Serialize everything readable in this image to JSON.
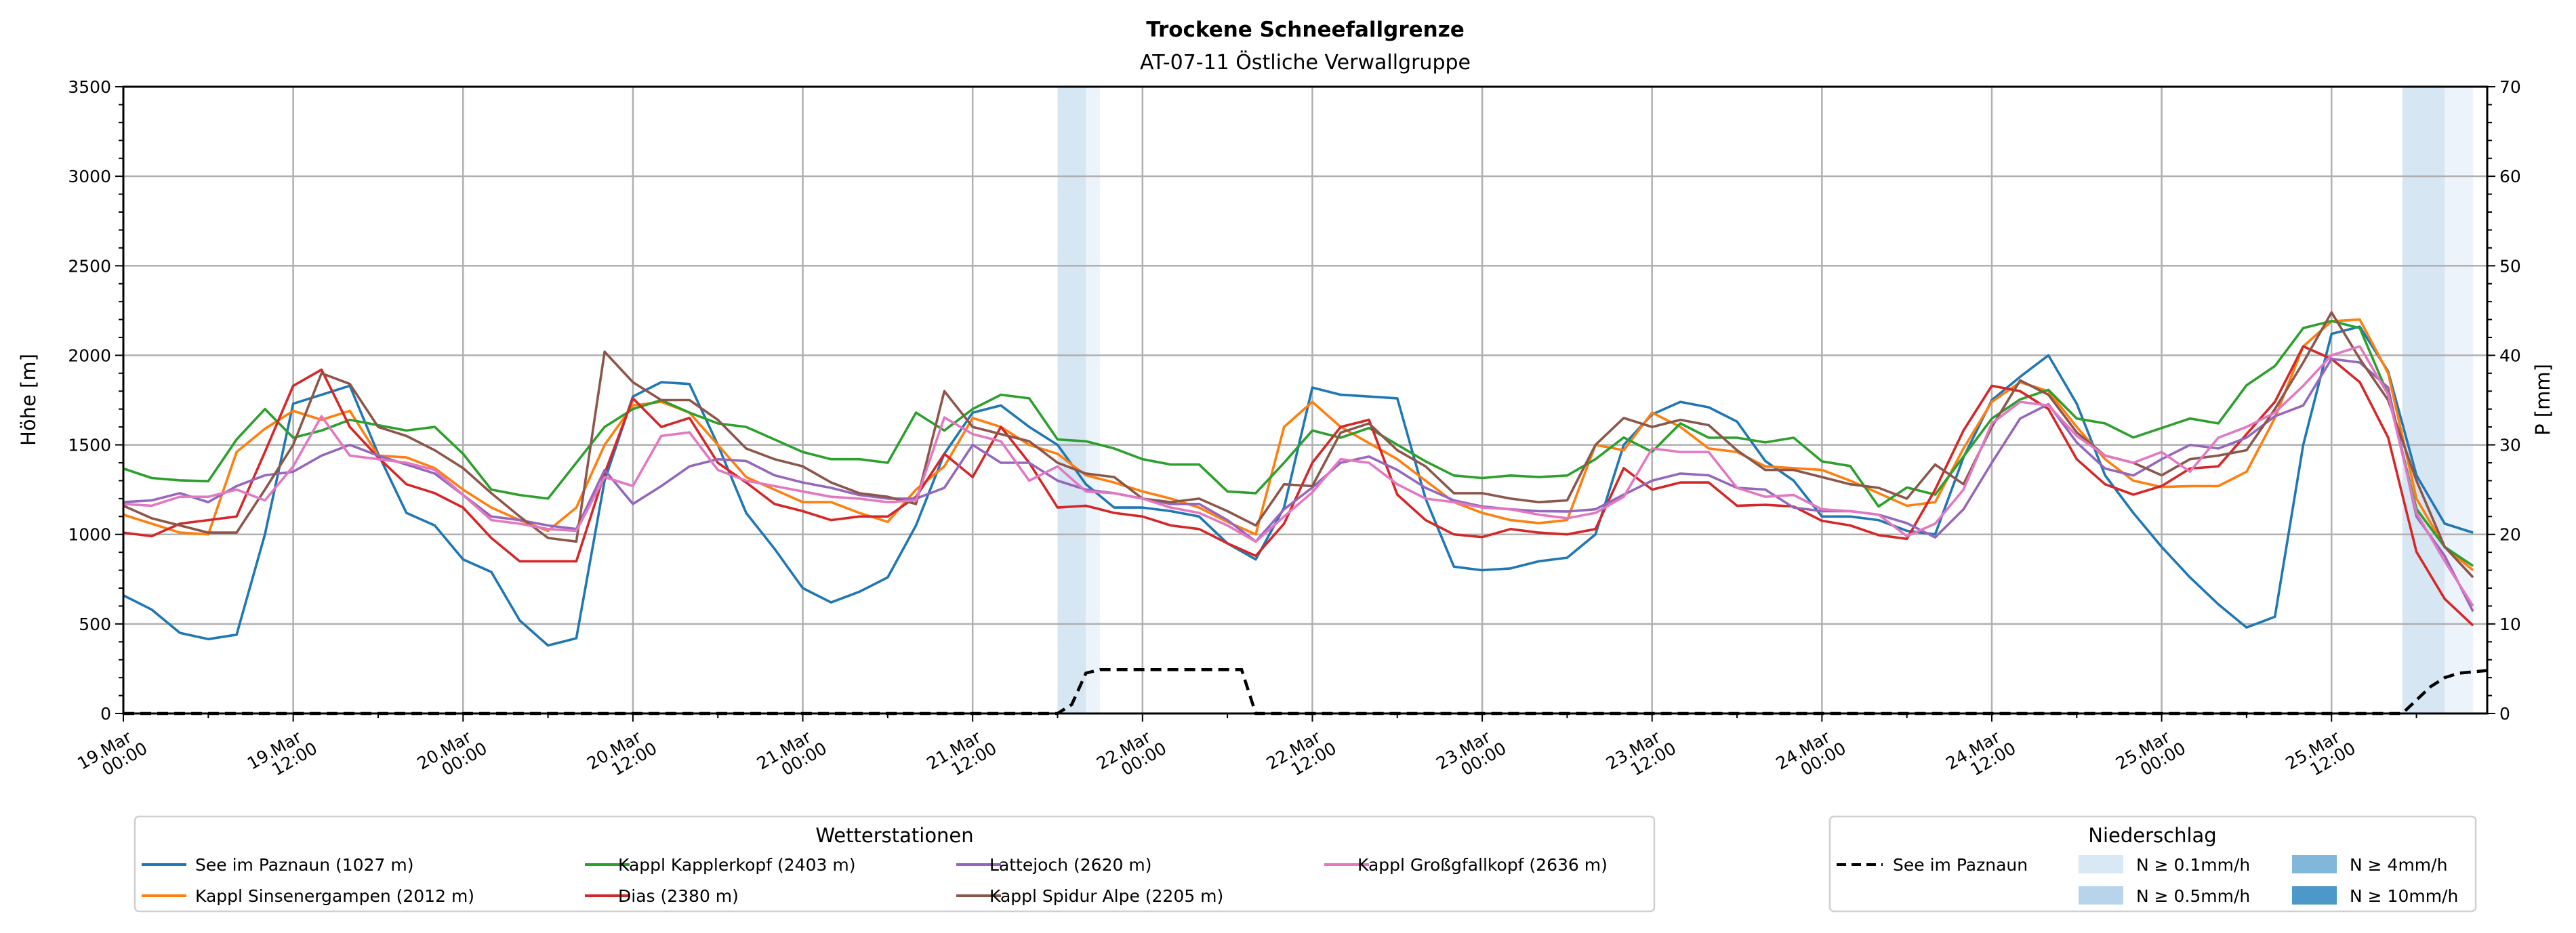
{
  "chart_data": {
    "type": "line",
    "title": "Trockene Schneefallgrenze",
    "subtitle": "AT-07-11 Östliche Verwallgruppe",
    "ylabel": "Höhe [m]",
    "ylabel_right": "P [mm]",
    "ylim": [
      0,
      3500
    ],
    "ylim_right": [
      0,
      70
    ],
    "xlim_hours": [
      0,
      167
    ],
    "grid": true,
    "y_ticks": [
      "0",
      "500",
      "1000",
      "1500",
      "2000",
      "2500",
      "3000",
      "3500"
    ],
    "y_ticks_right": [
      "0",
      "10",
      "20",
      "30",
      "40",
      "50",
      "60",
      "70"
    ],
    "x_ticks": [
      {
        "hour": 0,
        "date": "19.Mar",
        "time": "00:00"
      },
      {
        "hour": 12,
        "date": "19.Mar",
        "time": "12:00"
      },
      {
        "hour": 24,
        "date": "20.Mar",
        "time": "00:00"
      },
      {
        "hour": 36,
        "date": "20.Mar",
        "time": "12:00"
      },
      {
        "hour": 48,
        "date": "21.Mar",
        "time": "00:00"
      },
      {
        "hour": 60,
        "date": "21.Mar",
        "time": "12:00"
      },
      {
        "hour": 72,
        "date": "22.Mar",
        "time": "00:00"
      },
      {
        "hour": 84,
        "date": "22.Mar",
        "time": "12:00"
      },
      {
        "hour": 96,
        "date": "23.Mar",
        "time": "00:00"
      },
      {
        "hour": 108,
        "date": "23.Mar",
        "time": "12:00"
      },
      {
        "hour": 120,
        "date": "24.Mar",
        "time": "00:00"
      },
      {
        "hour": 132,
        "date": "24.Mar",
        "time": "12:00"
      },
      {
        "hour": 144,
        "date": "25.Mar",
        "time": "00:00"
      },
      {
        "hour": 156,
        "date": "25.Mar",
        "time": "12:00"
      }
    ],
    "x": [
      0,
      2,
      4,
      6,
      8,
      10,
      12,
      14,
      16,
      18,
      20,
      22,
      24,
      26,
      28,
      30,
      32,
      34,
      36,
      38,
      40,
      42,
      44,
      46,
      48,
      50,
      52,
      54,
      56,
      58,
      60,
      62,
      64,
      66,
      68,
      70,
      72,
      74,
      76,
      78,
      80,
      82,
      84,
      86,
      88,
      90,
      92,
      94,
      96,
      98,
      100,
      102,
      104,
      106,
      108,
      110,
      112,
      114,
      116,
      118,
      120,
      122,
      124,
      126,
      128,
      130,
      132,
      134,
      136,
      138,
      140,
      142,
      144,
      146,
      148,
      150,
      152,
      154,
      156,
      158,
      160,
      162,
      164,
      166
    ],
    "series": [
      {
        "name": "See im Paznaun (1027 m)",
        "color": "#1f77b4",
        "values": [
          660,
          580,
          450,
          415,
          440,
          1000,
          1730,
          1780,
          1830,
          1450,
          1120,
          1050,
          860,
          790,
          520,
          380,
          420,
          1300,
          1770,
          1850,
          1840,
          1500,
          1120,
          920,
          700,
          620,
          680,
          760,
          1050,
          1450,
          1680,
          1720,
          1600,
          1500,
          1280,
          1150,
          1150,
          1130,
          1100,
          950,
          860,
          1150,
          1820,
          1780,
          1770,
          1760,
          1200,
          820,
          800,
          810,
          850,
          870,
          1000,
          1500,
          1670,
          1740,
          1710,
          1630,
          1410,
          1300,
          1100,
          1100,
          1080,
          1020,
          1000,
          1430,
          1750,
          1880,
          2000,
          1730,
          1330,
          1120,
          930,
          760,
          610,
          480,
          540,
          1500,
          2120,
          2160,
          1910,
          1330,
          1060,
          1010
        ]
      },
      {
        "name": "Kappl Sinsenergampen (2012 m)",
        "color": "#ff7f0e",
        "values": [
          1110,
          1060,
          1010,
          1000,
          1460,
          1590,
          1690,
          1640,
          1690,
          1440,
          1430,
          1370,
          1250,
          1150,
          1080,
          1020,
          1150,
          1500,
          1720,
          1740,
          1680,
          1500,
          1320,
          1250,
          1180,
          1180,
          1120,
          1070,
          1250,
          1380,
          1650,
          1600,
          1500,
          1450,
          1330,
          1290,
          1240,
          1200,
          1150,
          1070,
          1000,
          1600,
          1740,
          1600,
          1510,
          1420,
          1300,
          1180,
          1120,
          1080,
          1063,
          1080,
          1500,
          1470,
          1680,
          1600,
          1480,
          1460,
          1380,
          1370,
          1360,
          1300,
          1230,
          1160,
          1180,
          1480,
          1740,
          1850,
          1800,
          1600,
          1420,
          1300,
          1265,
          1270,
          1270,
          1350,
          1650,
          2050,
          2190,
          2200,
          1900,
          1200,
          930,
          800
        ]
      },
      {
        "name": "Kappl Kapplerkopf (2403 m)",
        "color": "#2ca02c",
        "values": [
          1368,
          1315,
          1302,
          1297,
          1530,
          1700,
          1540,
          1580,
          1640,
          1610,
          1580,
          1600,
          1450,
          1250,
          1220,
          1200,
          1400,
          1600,
          1700,
          1750,
          1680,
          1620,
          1600,
          1530,
          1460,
          1420,
          1420,
          1400,
          1680,
          1580,
          1700,
          1780,
          1760,
          1530,
          1520,
          1480,
          1420,
          1390,
          1390,
          1240,
          1230,
          1400,
          1580,
          1540,
          1594,
          1501,
          1408,
          1329,
          1315,
          1329,
          1320,
          1329,
          1420,
          1541,
          1461,
          1620,
          1540,
          1540,
          1514,
          1540,
          1408,
          1382,
          1156,
          1262,
          1222,
          1435,
          1647,
          1754,
          1807,
          1647,
          1620,
          1541,
          1594,
          1647,
          1620,
          1833,
          1940,
          2152,
          2192,
          2152,
          1780,
          1142,
          930,
          824
        ]
      },
      {
        "name": "Dias (2380 m)",
        "color": "#d62728",
        "values": [
          1010,
          990,
          1060,
          1080,
          1100,
          1460,
          1830,
          1920,
          1600,
          1430,
          1280,
          1230,
          1150,
          980,
          850,
          850,
          850,
          1340,
          1760,
          1600,
          1650,
          1400,
          1290,
          1170,
          1130,
          1080,
          1100,
          1100,
          1210,
          1450,
          1320,
          1600,
          1400,
          1150,
          1160,
          1120,
          1100,
          1050,
          1030,
          950,
          880,
          1060,
          1400,
          1600,
          1640,
          1222,
          1080,
          1000,
          985,
          1030,
          1010,
          1000,
          1030,
          1370,
          1250,
          1290,
          1290,
          1160,
          1165,
          1156,
          1076,
          1050,
          996,
          975,
          1250,
          1580,
          1830,
          1800,
          1700,
          1420,
          1280,
          1222,
          1270,
          1368,
          1380,
          1560,
          1740,
          2050,
          1980,
          1850,
          1541,
          903,
          640,
          491
        ]
      },
      {
        "name": "Lattejoch (2620 m)",
        "color": "#9467bd",
        "values": [
          1180,
          1190,
          1230,
          1180,
          1270,
          1330,
          1350,
          1440,
          1500,
          1440,
          1390,
          1340,
          1220,
          1100,
          1080,
          1050,
          1030,
          1360,
          1170,
          1270,
          1380,
          1420,
          1410,
          1330,
          1290,
          1260,
          1220,
          1200,
          1200,
          1260,
          1500,
          1400,
          1400,
          1300,
          1250,
          1230,
          1200,
          1170,
          1170,
          1080,
          960,
          1140,
          1262,
          1400,
          1435,
          1360,
          1260,
          1190,
          1156,
          1140,
          1130,
          1128,
          1140,
          1222,
          1300,
          1340,
          1330,
          1260,
          1250,
          1150,
          1130,
          1130,
          1110,
          1063,
          983,
          1140,
          1400,
          1647,
          1727,
          1514,
          1368,
          1329,
          1420,
          1500,
          1480,
          1540,
          1660,
          1720,
          1980,
          1960,
          1820,
          1100,
          880,
          570
        ]
      },
      {
        "name": "Kappl Spidur Alpe (2205 m)",
        "color": "#8c564b",
        "values": [
          1160,
          1090,
          1050,
          1010,
          1010,
          1250,
          1500,
          1900,
          1840,
          1600,
          1550,
          1470,
          1370,
          1230,
          1100,
          980,
          960,
          2020,
          1850,
          1750,
          1750,
          1640,
          1480,
          1420,
          1380,
          1290,
          1230,
          1210,
          1170,
          1800,
          1600,
          1560,
          1520,
          1400,
          1340,
          1320,
          1200,
          1180,
          1200,
          1130,
          1050,
          1280,
          1270,
          1568,
          1620,
          1470,
          1380,
          1230,
          1230,
          1200,
          1180,
          1190,
          1500,
          1650,
          1600,
          1640,
          1610,
          1470,
          1360,
          1360,
          1320,
          1280,
          1260,
          1200,
          1390,
          1280,
          1600,
          1860,
          1780,
          1570,
          1440,
          1400,
          1330,
          1420,
          1440,
          1470,
          1700,
          1960,
          2240,
          1980,
          1750,
          1300,
          930,
          760
        ]
      },
      {
        "name": "Kappl Großgfallkopf (2636 m)",
        "color": "#e377c2",
        "values": [
          1170,
          1160,
          1210,
          1210,
          1250,
          1190,
          1380,
          1660,
          1440,
          1420,
          1400,
          1360,
          1220,
          1080,
          1060,
          1030,
          1020,
          1320,
          1270,
          1550,
          1570,
          1360,
          1300,
          1270,
          1240,
          1210,
          1200,
          1180,
          1190,
          1653,
          1560,
          1520,
          1300,
          1380,
          1240,
          1230,
          1200,
          1150,
          1120,
          1050,
          960,
          1100,
          1235,
          1420,
          1400,
          1280,
          1200,
          1180,
          1150,
          1140,
          1110,
          1090,
          1120,
          1210,
          1480,
          1460,
          1460,
          1260,
          1210,
          1220,
          1140,
          1130,
          1110,
          990,
          1060,
          1250,
          1620,
          1740,
          1720,
          1550,
          1440,
          1400,
          1460,
          1350,
          1540,
          1600,
          1680,
          1830,
          2000,
          2050,
          1780,
          1120,
          850,
          600
        ]
      }
    ],
    "precipitation": {
      "name": "See im Paznaun",
      "axis": "right",
      "style": "dashed",
      "color": "#000000",
      "points": [
        [
          0,
          0
        ],
        [
          66,
          0
        ],
        [
          67,
          1
        ],
        [
          68,
          4.5
        ],
        [
          69,
          4.9
        ],
        [
          79,
          4.9
        ],
        [
          80,
          0
        ],
        [
          161,
          0
        ],
        [
          162,
          1.5
        ],
        [
          163,
          3
        ],
        [
          164,
          4
        ],
        [
          165,
          4.5
        ],
        [
          167,
          4.8
        ]
      ]
    },
    "precip_bands": [
      {
        "start_hour": 66,
        "end_hour": 68,
        "level": "N ≥ 0.1mm/h",
        "color": "#d7e6f3"
      },
      {
        "start_hour": 68,
        "end_hour": 69,
        "level": "N ≥ 0.1mm/h",
        "color": "#edf3fb"
      },
      {
        "start_hour": 161,
        "end_hour": 164,
        "level": "N ≥ 0.1mm/h",
        "color": "#d7e6f3"
      },
      {
        "start_hour": 164,
        "end_hour": 166,
        "level": "N ≥ 0.1mm/h",
        "color": "#edf3fb"
      }
    ],
    "legend_stations": {
      "title": "Wetterstationen",
      "placement": "bottom-left"
    },
    "legend_precip": {
      "title": "Niederschlag",
      "placement": "bottom-right",
      "line_label": "See im Paznaun",
      "levels": [
        {
          "label": "N ≥ 0.1mm/h",
          "color": "#d9e8f5"
        },
        {
          "label": "N ≥ 0.5mm/h",
          "color": "#b8d4ea"
        },
        {
          "label": "N ≥ 4mm/h",
          "color": "#80b7da"
        },
        {
          "label": "N ≥ 10mm/h",
          "color": "#4b98c9"
        }
      ]
    }
  }
}
